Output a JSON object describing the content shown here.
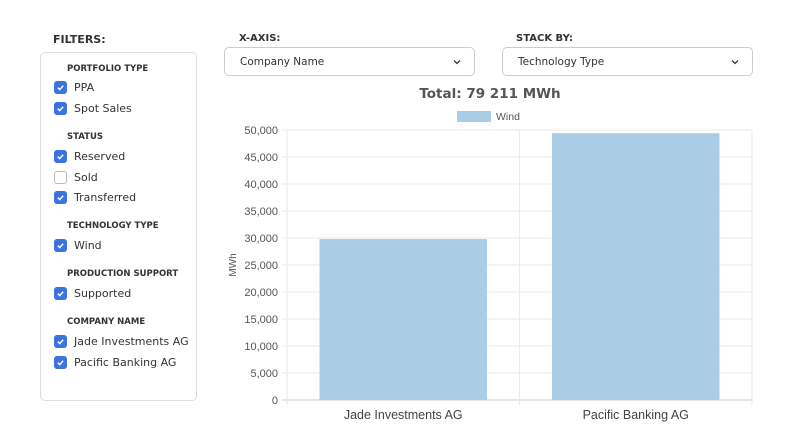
{
  "filters": {
    "title": "FILTERS:",
    "sections": [
      {
        "label": "PORTFOLIO TYPE",
        "items": [
          {
            "label": "PPA",
            "checked": true
          },
          {
            "label": "Spot Sales",
            "checked": true
          }
        ]
      },
      {
        "label": "STATUS",
        "items": [
          {
            "label": "Reserved",
            "checked": true
          },
          {
            "label": "Sold",
            "checked": false
          },
          {
            "label": "Transferred",
            "checked": true
          }
        ]
      },
      {
        "label": "TECHNOLOGY TYPE",
        "items": [
          {
            "label": "Wind",
            "checked": true
          }
        ]
      },
      {
        "label": "PRODUCTION SUPPORT",
        "items": [
          {
            "label": "Supported",
            "checked": true
          }
        ]
      },
      {
        "label": "COMPANY NAME",
        "items": [
          {
            "label": "Jade Investments AG",
            "checked": true
          },
          {
            "label": "Pacific Banking AG",
            "checked": true
          }
        ]
      }
    ]
  },
  "xaxis": {
    "label": "X-AXIS:",
    "value": "Company Name"
  },
  "stackby": {
    "label": "STACK BY:",
    "value": "Technology Type"
  },
  "total": "Total: 79 211 MWh",
  "colors": {
    "accent": "#3b74e0",
    "bar": "#a9cde5"
  },
  "chart_data": {
    "type": "bar",
    "title": "Total: 79 211 MWh",
    "categories": [
      "Jade Investments AG",
      "Pacific Banking AG"
    ],
    "series": [
      {
        "name": "Wind",
        "values": [
          29800,
          49411
        ]
      }
    ],
    "ylabel": "MWh",
    "xlabel": "",
    "ylim": [
      0,
      50000
    ],
    "yticks": [
      "0",
      "5,000",
      "10,000",
      "15,000",
      "20,000",
      "25,000",
      "30,000",
      "35,000",
      "40,000",
      "45,000",
      "50,000"
    ],
    "grid": true,
    "legend": "top"
  }
}
